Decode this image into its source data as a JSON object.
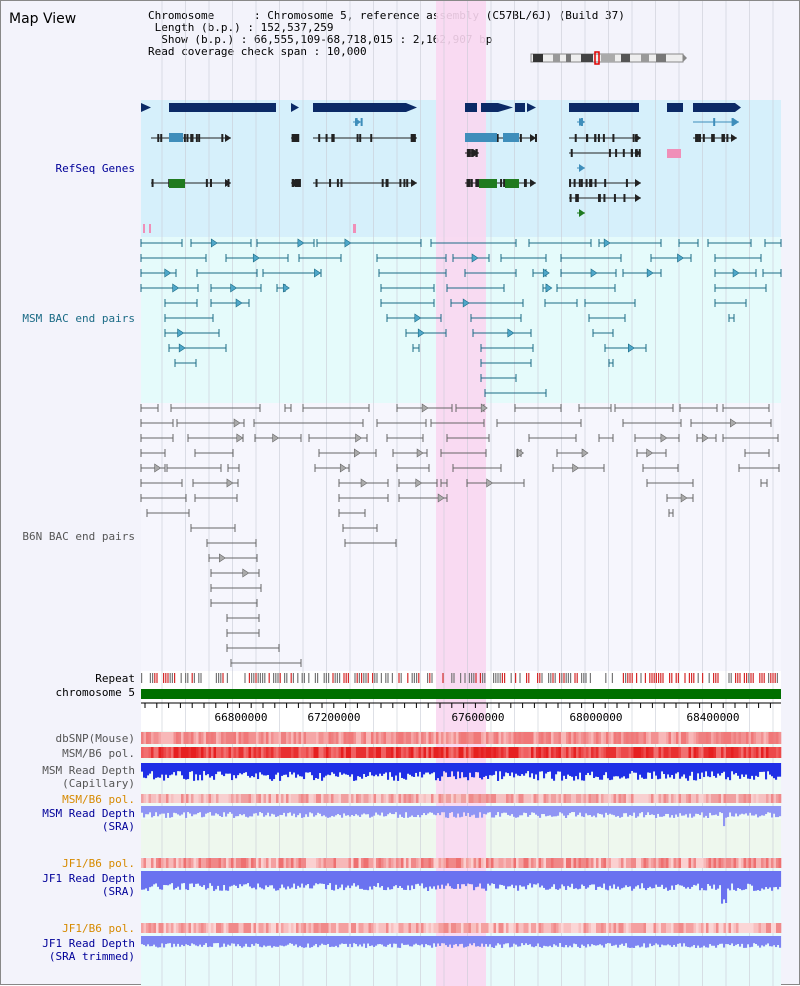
{
  "title": "Map View",
  "info": {
    "chromosome_label": "Chromosome",
    "chromosome_value": "Chromosome 5, reference assembly (C57BL/6J) (Build 37)",
    "length_label": "Length (b.p.)",
    "length_value": "152,537,259",
    "show_label": "Show (b.p.)",
    "show_value": "66,555,109-68,718,015 : 2,162,907 bp",
    "span_label": "Read coverage check span",
    "span_value": "10,000"
  },
  "tracks": {
    "refseq": "RefSeq Genes",
    "msm_bac": "MSM BAC end pairs",
    "b6n_bac": "B6N BAC end pairs",
    "repeat": "Repeat",
    "chromosome": "chromosome 5",
    "dbsnp": "dbSNP(Mouse)",
    "msm_b6_pol": "MSM/B6 pol.",
    "msm_depth_cap_1": "MSM Read Depth",
    "msm_depth_cap_2": "(Capillary)",
    "msm_b6_pol2": "MSM/B6 pol.",
    "msm_depth_sra_1": "MSM Read Depth",
    "msm_depth_sra_2": "(SRA)",
    "jf1_pol": "JF1/B6 pol.",
    "jf1_depth_1": "JF1 Read Depth",
    "jf1_depth_2": "(SRA)",
    "jf1_pol2": "JF1/B6 pol.",
    "jf1_trim_1": "JF1 Read Depth",
    "jf1_trim_2": "(SRA trimmed)"
  },
  "axis": {
    "ticks": [
      "66800000",
      "67200000",
      "67600000",
      "68000000",
      "68400000"
    ]
  },
  "colors": {
    "refseq_bg": "#d6f0fb",
    "msm_bg": "#e5fbfb",
    "highlight": "#f9d7f1",
    "refseq_navy": "#0b2a66",
    "refseq_green": "#1f7a1f",
    "msm_line": "#1b6b86",
    "b6n_line": "#666666",
    "chrom_green": "#007000",
    "label_blue": "#000099",
    "label_orange": "#d68a00"
  }
}
